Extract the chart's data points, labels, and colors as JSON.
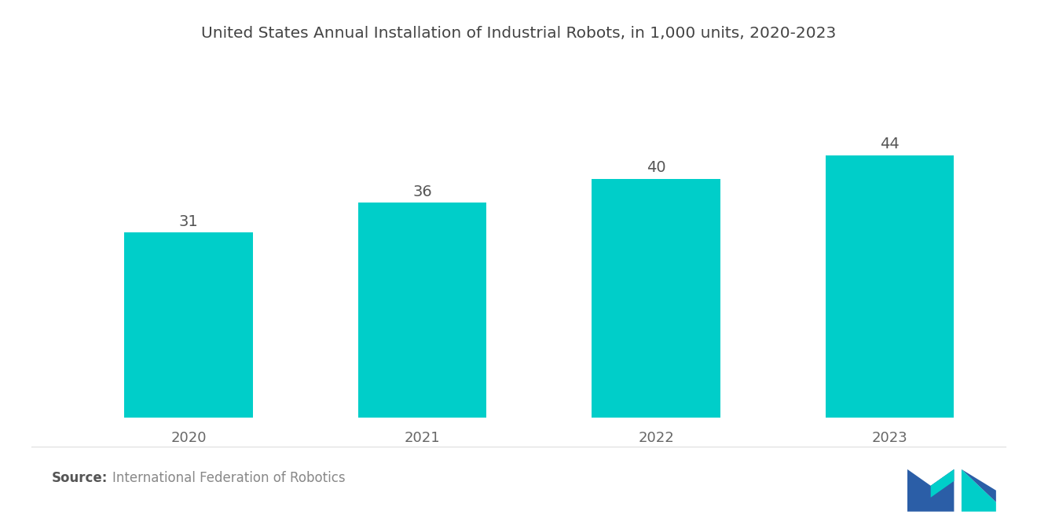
{
  "title": "United States Annual Installation of Industrial Robots, in 1,000 units, 2020-2023",
  "categories": [
    "2020",
    "2021",
    "2022",
    "2023"
  ],
  "values": [
    31,
    36,
    40,
    44
  ],
  "bar_color": "#00CEC9",
  "bar_width": 0.55,
  "value_label_color": "#555555",
  "value_label_fontsize": 14,
  "title_fontsize": 14.5,
  "title_color": "#444444",
  "xlabel_color": "#666666",
  "xlabel_fontsize": 13,
  "source_bold": "Source:",
  "source_text": "International Federation of Robotics",
  "source_fontsize": 12,
  "source_color": "#888888",
  "source_bold_color": "#555555",
  "background_color": "#ffffff",
  "ylim": [
    0,
    56
  ],
  "logo_m_color": "#2B5EA7",
  "logo_teal_color": "#00CEC9"
}
